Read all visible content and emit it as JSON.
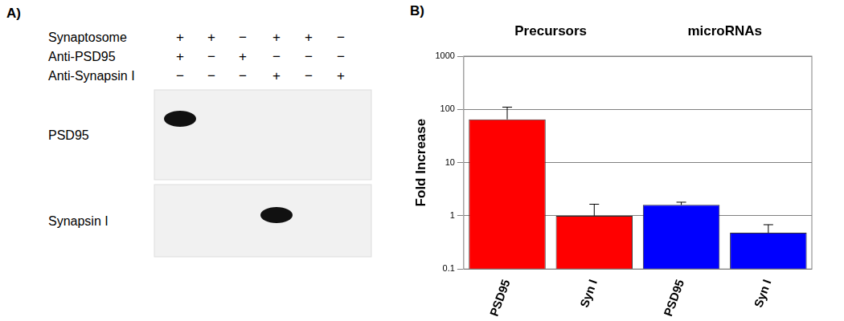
{
  "panel_labels": [
    "A)",
    "B)"
  ],
  "blot": {
    "conditions": [
      {
        "label": "Synaptosome",
        "lanes": [
          "+",
          "+",
          "−",
          "+",
          "+",
          "−"
        ]
      },
      {
        "label": "Anti-PSD95",
        "lanes": [
          "+",
          "−",
          "+",
          "−",
          "−",
          "−"
        ]
      },
      {
        "label": "Anti-Synapsin I",
        "lanes": [
          "−",
          "−",
          "−",
          "+",
          "−",
          "+"
        ]
      }
    ],
    "blots": [
      {
        "label": "PSD95",
        "bands": [
          true,
          false,
          false,
          false,
          false,
          false
        ]
      },
      {
        "label": "Synapsin I",
        "bands": [
          false,
          false,
          false,
          true,
          false,
          false
        ]
      }
    ]
  },
  "chart_data": {
    "type": "bar",
    "categories": [
      "PSD95",
      "Syn I",
      "PSD95",
      "Syn I"
    ],
    "groups": [
      "Precursors",
      "Precursors",
      "microRNAs",
      "microRNAs"
    ],
    "values": [
      65,
      1.0,
      1.6,
      0.48
    ],
    "errors": [
      45,
      0.65,
      0.2,
      0.2
    ],
    "colors": [
      "#ff0000",
      "#ff0000",
      "#0000ff",
      "#0000ff"
    ],
    "y_label": "Fold Increase",
    "log": "y",
    "ylim": [
      0.1,
      1000
    ],
    "yticks": [
      0.1,
      1,
      10,
      100,
      1000
    ],
    "grid": true
  }
}
